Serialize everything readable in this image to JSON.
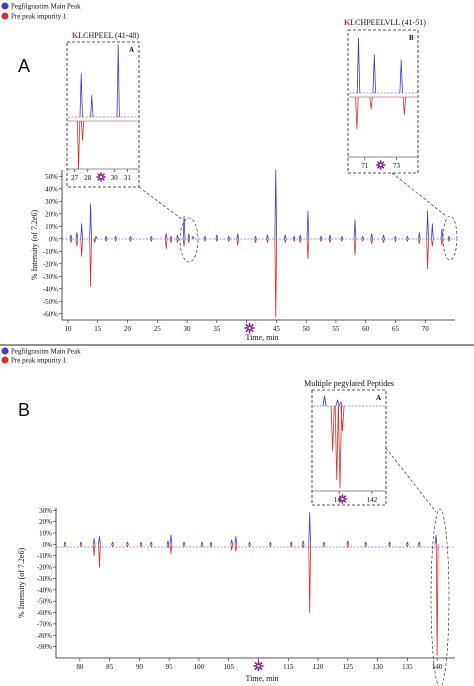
{
  "legend": {
    "items": [
      {
        "label": "Pegfilgrastim Main Peak",
        "color": "#3b3bd6"
      },
      {
        "label": "Pre peak impurity 1",
        "color": "#d62f2f"
      }
    ]
  },
  "colors": {
    "main": "#3b3bd6",
    "impurity": "#d62f2f",
    "marker": "#8a1a8a"
  },
  "chart_data": [
    {
      "panel": "A",
      "type": "line",
      "xlabel": "Time, min",
      "ylabel": "% Intensity (of 7.2e6)",
      "xlim": [
        9,
        75
      ],
      "ylim": [
        -65,
        55
      ],
      "xticks": [
        10,
        15,
        20,
        25,
        30,
        35,
        40,
        45,
        50,
        55,
        60,
        65,
        70
      ],
      "yticks": [
        "50%",
        "40%",
        "30%",
        "20%",
        "10%",
        "0%",
        "-10%",
        "-20%",
        "-30%",
        "-40%",
        "-50%",
        "-60%"
      ],
      "marker_x": 40.5,
      "series": [
        {
          "name": "Pegfilgrastim Main Peak",
          "peaks": [
            [
              10.5,
              3
            ],
            [
              11.5,
              5
            ],
            [
              12.3,
              12
            ],
            [
              13.8,
              28
            ],
            [
              14.7,
              2
            ],
            [
              16.4,
              2
            ],
            [
              18,
              2
            ],
            [
              20.5,
              2
            ],
            [
              24,
              2
            ],
            [
              26.5,
              4
            ],
            [
              27.3,
              2
            ],
            [
              28.4,
              3
            ],
            [
              29.5,
              18
            ],
            [
              30.3,
              4
            ],
            [
              31,
              2
            ],
            [
              33,
              2
            ],
            [
              35,
              3
            ],
            [
              37,
              2
            ],
            [
              38.5,
              4
            ],
            [
              41.5,
              2
            ],
            [
              43.5,
              3
            ],
            [
              44.9,
              55
            ],
            [
              46.5,
              3
            ],
            [
              48,
              2
            ],
            [
              49,
              3
            ],
            [
              50.3,
              22
            ],
            [
              52.5,
              2
            ],
            [
              54,
              3
            ],
            [
              56,
              2
            ],
            [
              58.2,
              15
            ],
            [
              59.5,
              2
            ],
            [
              61,
              4
            ],
            [
              63,
              3
            ],
            [
              65,
              2
            ],
            [
              67,
              2
            ],
            [
              69,
              5
            ],
            [
              70.4,
              22
            ],
            [
              71.2,
              12
            ],
            [
              72.8,
              8
            ],
            [
              74,
              2
            ]
          ]
        },
        {
          "name": "Pre peak impurity 1",
          "peaks": [
            [
              10.5,
              -3
            ],
            [
              11.5,
              -6
            ],
            [
              12.3,
              -14
            ],
            [
              13.8,
              -38
            ],
            [
              14.5,
              -3
            ],
            [
              16.4,
              -2
            ],
            [
              18,
              -2
            ],
            [
              20.5,
              -2
            ],
            [
              24,
              -2
            ],
            [
              26.5,
              -8
            ],
            [
              27.3,
              -3
            ],
            [
              28.4,
              -3
            ],
            [
              29.5,
              -6
            ],
            [
              30.3,
              -3
            ],
            [
              33,
              -2
            ],
            [
              35,
              -2
            ],
            [
              37,
              -2
            ],
            [
              38.5,
              -5
            ],
            [
              41.5,
              -3
            ],
            [
              43.5,
              -3
            ],
            [
              44.9,
              -63
            ],
            [
              46.5,
              -3
            ],
            [
              48,
              -2
            ],
            [
              49,
              -3
            ],
            [
              50.3,
              -16
            ],
            [
              52.5,
              -2
            ],
            [
              54,
              -3
            ],
            [
              56,
              -2
            ],
            [
              58.2,
              -13
            ],
            [
              59.5,
              -2
            ],
            [
              61,
              -4
            ],
            [
              63,
              -3
            ],
            [
              65,
              -2
            ],
            [
              67,
              -2
            ],
            [
              69,
              -4
            ],
            [
              70.4,
              -24
            ],
            [
              71.2,
              -6
            ],
            [
              72.8,
              -5
            ],
            [
              74,
              -2
            ]
          ]
        }
      ]
    },
    {
      "panel": "A-inset-A",
      "type": "line",
      "title": "KLCHPEEL (41-48)",
      "title_highlight": "K",
      "label": "A",
      "xlim": [
        26.5,
        31.8
      ],
      "xticks": [
        27,
        28,
        30,
        31
      ],
      "marker_x": 29,
      "series": [
        {
          "name": "Pegfilgrastim Main Peak",
          "peaks": [
            [
              27.5,
              0.6
            ],
            [
              28.3,
              0.3
            ],
            [
              30.3,
              1.0
            ]
          ]
        },
        {
          "name": "Pre peak impurity 1",
          "peaks": [
            [
              27.3,
              -1.0
            ],
            [
              27.6,
              -0.4
            ]
          ]
        }
      ]
    },
    {
      "panel": "A-inset-B",
      "type": "line",
      "title": "KLCHPEELVLL (41-51)",
      "title_highlight": "K",
      "label": "B",
      "xlim": [
        70,
        74.3
      ],
      "xticks": [
        71,
        73
      ],
      "marker_x": 72,
      "series": [
        {
          "name": "Pegfilgrastim Main Peak",
          "peaks": [
            [
              70.6,
              1.0
            ],
            [
              71.6,
              0.7
            ],
            [
              73.3,
              0.6
            ]
          ]
        },
        {
          "name": "Pre peak impurity 1",
          "peaks": [
            [
              70.5,
              -0.8
            ],
            [
              71.4,
              -0.3
            ],
            [
              73.5,
              -0.45
            ]
          ]
        }
      ]
    },
    {
      "panel": "B",
      "type": "line",
      "xlabel": "Time, min",
      "ylabel": "% Intensity (of 7.2e6)",
      "xlim": [
        76,
        143
      ],
      "ylim": [
        -100,
        32
      ],
      "xticks": [
        80,
        85,
        90,
        95,
        100,
        105,
        110,
        115,
        120,
        125,
        130,
        135,
        140
      ],
      "yticks": [
        "30%",
        "20%",
        "10%",
        "0%",
        "-10%",
        "-20%",
        "-30%",
        "-40%",
        "-50%",
        "-60%",
        "-70%",
        "-80%",
        "-90%"
      ],
      "marker_x": 110,
      "series": [
        {
          "name": "Pegfilgrastim Main Peak",
          "peaks": [
            [
              77.5,
              2
            ],
            [
              80.2,
              2
            ],
            [
              82.4,
              5
            ],
            [
              83.3,
              7
            ],
            [
              85.5,
              2
            ],
            [
              88,
              2
            ],
            [
              90.3,
              2
            ],
            [
              92,
              2
            ],
            [
              94.8,
              3
            ],
            [
              95.3,
              8
            ],
            [
              97.5,
              2
            ],
            [
              100.5,
              2
            ],
            [
              102,
              2
            ],
            [
              105.5,
              4
            ],
            [
              106.2,
              7
            ],
            [
              108.5,
              2
            ],
            [
              112,
              2
            ],
            [
              115.5,
              2
            ],
            [
              117.5,
              3
            ],
            [
              118.6,
              28
            ],
            [
              121,
              2
            ],
            [
              125,
              3
            ],
            [
              128,
              2
            ],
            [
              132,
              2
            ],
            [
              135,
              2
            ],
            [
              137,
              2
            ],
            [
              139.8,
              8
            ]
          ]
        },
        {
          "name": "Pre peak impurity 1",
          "peaks": [
            [
              77.5,
              -2
            ],
            [
              80.2,
              -2
            ],
            [
              82.4,
              -10
            ],
            [
              83.3,
              -20
            ],
            [
              85.5,
              -2
            ],
            [
              88,
              -2
            ],
            [
              90.3,
              -2
            ],
            [
              92,
              -2
            ],
            [
              94.8,
              -3
            ],
            [
              95.3,
              -8
            ],
            [
              97.5,
              -2
            ],
            [
              100.5,
              -2
            ],
            [
              102,
              -2
            ],
            [
              105.5,
              -5
            ],
            [
              106.2,
              -6
            ],
            [
              108.5,
              -2
            ],
            [
              112,
              -2
            ],
            [
              115.5,
              -2
            ],
            [
              117.5,
              -3
            ],
            [
              118.6,
              -60
            ],
            [
              121,
              -2
            ],
            [
              125,
              -3
            ],
            [
              128,
              -2
            ],
            [
              132,
              -2
            ],
            [
              135,
              -2
            ],
            [
              137,
              -2
            ],
            [
              140,
              -98
            ]
          ]
        }
      ]
    },
    {
      "panel": "B-inset-A",
      "type": "line",
      "title": "Multiple pegylated Peptides",
      "label": "A",
      "xlim": [
        138.4,
        142.8
      ],
      "xticks": [
        140,
        142
      ],
      "marker_x": 140.2,
      "series": [
        {
          "name": "Pegfilgrastim Main Peak",
          "peaks": [
            [
              139.1,
              0.25
            ],
            [
              139.9,
              0.15
            ],
            [
              140.1,
              0.1
            ]
          ]
        },
        {
          "name": "Pre peak impurity 1",
          "peaks": [
            [
              139.6,
              -0.55
            ],
            [
              139.85,
              -0.9
            ],
            [
              140.05,
              -1.0
            ],
            [
              140.2,
              -0.3
            ]
          ]
        }
      ]
    }
  ]
}
